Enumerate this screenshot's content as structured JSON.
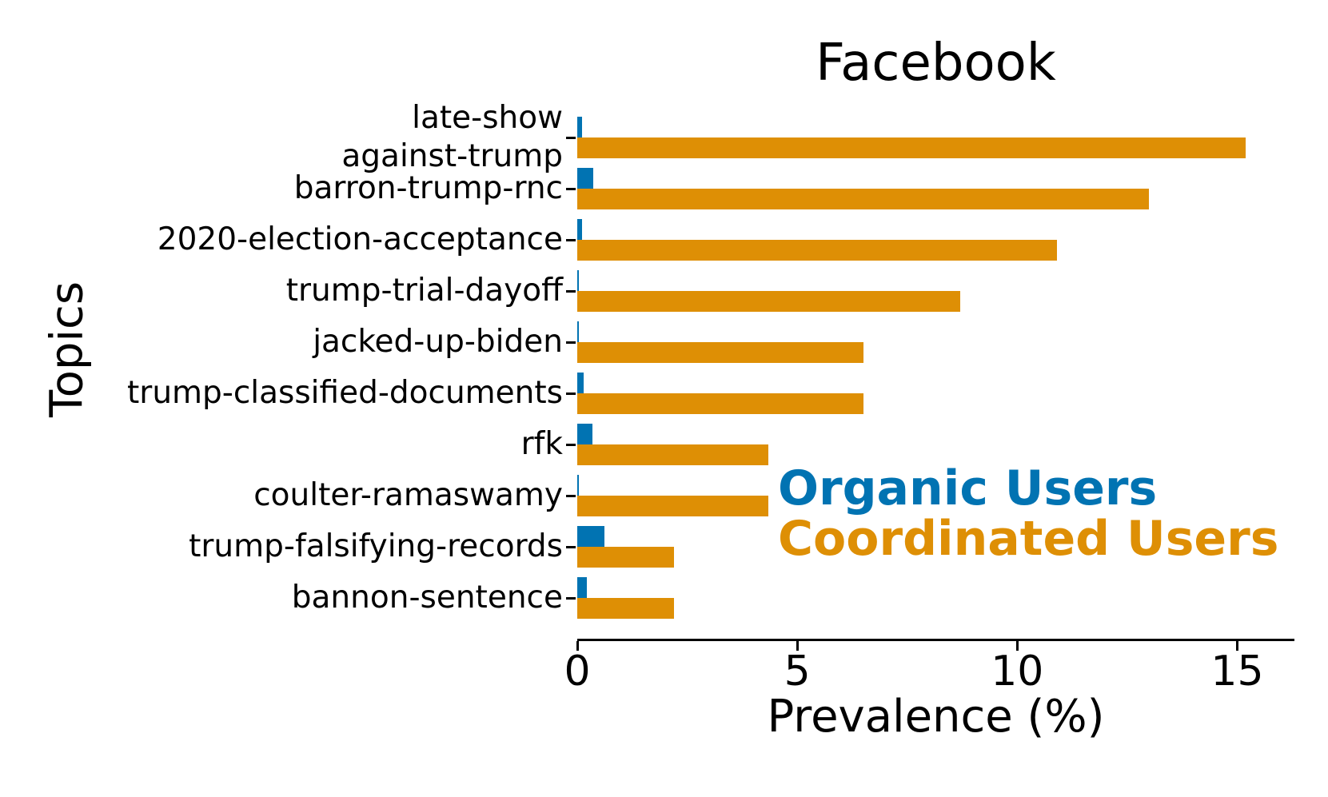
{
  "title": "Facebook",
  "x_axis": {
    "label": "Prevalence (%)",
    "ticks": [
      "0",
      "5",
      "10",
      "15"
    ]
  },
  "y_axis": {
    "label": "Topics"
  },
  "legend": {
    "organic_label": "Organic Users",
    "coordinated_label": "Coordinated Users"
  },
  "colors": {
    "organic": "#0173b2",
    "coordinated": "#de8f05",
    "axis": "#000000",
    "background": "#ffffff"
  },
  "chart_data": {
    "type": "bar",
    "orientation": "horizontal",
    "title": "Facebook",
    "xlabel": "Prevalence (%)",
    "ylabel": "Topics",
    "xlim": [
      0,
      16.3
    ],
    "xticks": [
      0,
      5,
      10,
      15
    ],
    "grid": false,
    "legend_position": "center-right",
    "categories": [
      "late-show-against-trump",
      "barron-trump-rnc",
      "2020-election-acceptance",
      "trump-trial-dayoff",
      "jacked-up-biden",
      "trump-classified-documents",
      "rfk",
      "coulter-ramaswamy",
      "trump-falsifying-records",
      "bannon-sentence"
    ],
    "category_display_lines": [
      [
        "late-show",
        "against-trump"
      ],
      [
        "barron-trump-rnc"
      ],
      [
        "2020-election-acceptance"
      ],
      [
        "trump-trial-dayoff"
      ],
      [
        "jacked-up-biden"
      ],
      [
        "trump-classified-documents"
      ],
      [
        "rfk"
      ],
      [
        "coulter-ramaswamy"
      ],
      [
        "trump-falsifying-records"
      ],
      [
        "bannon-sentence"
      ]
    ],
    "series": [
      {
        "name": "Organic Users",
        "color": "#0173b2",
        "values": [
          0.1,
          0.37,
          0.1,
          0.03,
          0.04,
          0.15,
          0.35,
          0.03,
          0.62,
          0.22
        ]
      },
      {
        "name": "Coordinated Users",
        "color": "#de8f05",
        "values": [
          15.2,
          13.0,
          10.9,
          8.7,
          6.5,
          6.5,
          4.35,
          4.35,
          2.2,
          2.2
        ]
      }
    ]
  }
}
